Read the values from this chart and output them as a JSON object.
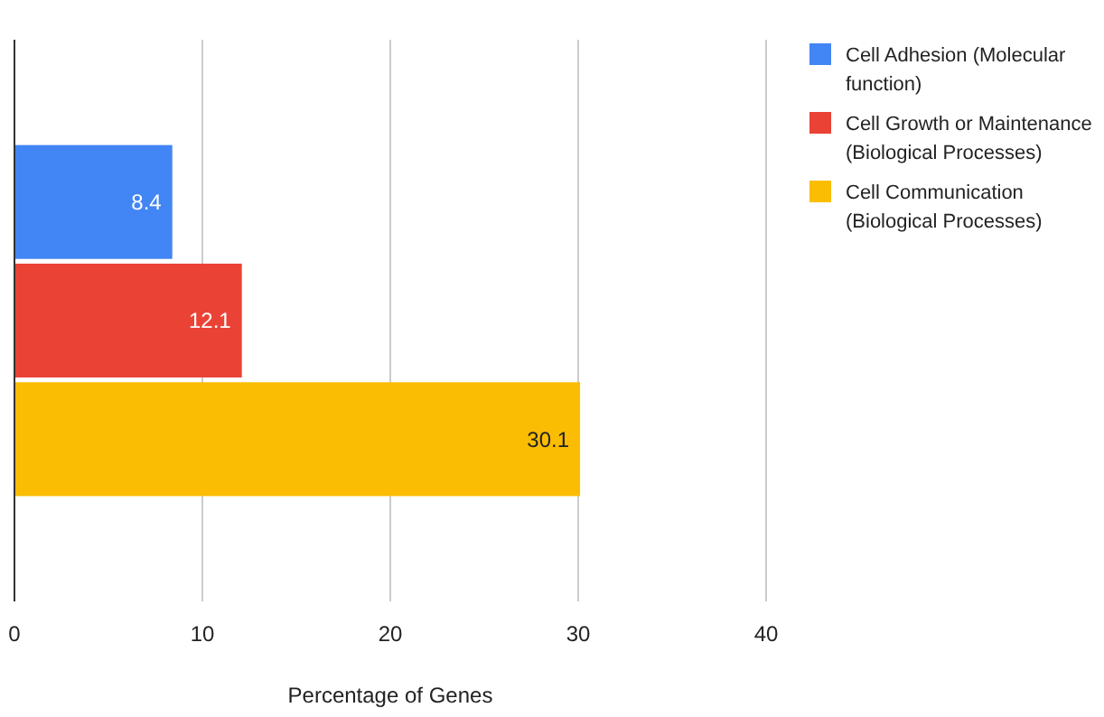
{
  "chart_data": {
    "type": "bar",
    "orientation": "horizontal",
    "categories": [
      null
    ],
    "series": [
      {
        "name": "Cell Adhesion (Molecular function)",
        "color": "#4285f4",
        "values": [
          8.4
        ]
      },
      {
        "name": "Cell Growth or Maintenance (Biological Processes)",
        "color": "#ea4335",
        "values": [
          12.1
        ]
      },
      {
        "name": "Cell Communication (Biological Processes)",
        "color": "#fbbc04",
        "values": [
          30.1
        ]
      }
    ],
    "xlim": [
      0,
      40
    ],
    "xticks": [
      0,
      10,
      20,
      30,
      40
    ],
    "xlabel": "Percentage of Genes",
    "grid": "x",
    "legend": "right",
    "data_labels": true
  }
}
